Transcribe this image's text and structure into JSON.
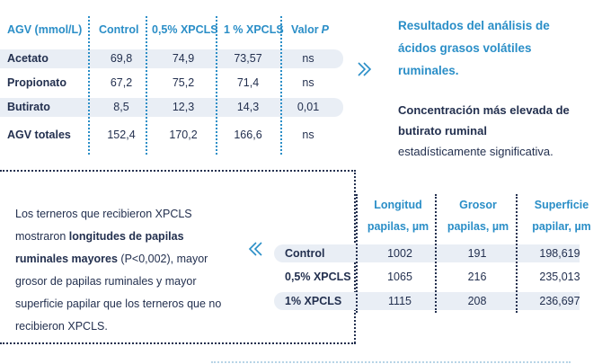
{
  "table1": {
    "headers": [
      "AGV (mmol/L)",
      "Control",
      "0,5% XPCLS",
      "1 % XPCLS",
      "Valor",
      "P"
    ],
    "rows": [
      {
        "label": "Acetato",
        "values": [
          "69,8",
          "74,9",
          "73,57",
          "ns"
        ]
      },
      {
        "label": "Propionato",
        "values": [
          "67,2",
          "75,2",
          "71,4",
          "ns"
        ]
      },
      {
        "label": "Butirato",
        "values": [
          "8,5",
          "12,3",
          "14,3",
          "0,01"
        ]
      },
      {
        "label": "AGV totales",
        "values": [
          "152,4",
          "170,2",
          "166,6",
          "ns"
        ]
      }
    ]
  },
  "caption1": {
    "title": "Resultados del análisis de ácidos grasos volátiles ruminales.",
    "body_bold": "Concentración más elevada de butirato ruminal",
    "body_rest": " estadísticamente significativa."
  },
  "text2": {
    "part1": "Los terneros que recibieron XPCLS mostraron ",
    "bold": "longitudes de papilas ruminales mayores",
    "part2": " (P<0,002), mayor grosor de papilas ruminales y mayor superficie papilar que los terneros que no recibieron XPCLS."
  },
  "table2": {
    "headers": [
      {
        "l1": "Longitud",
        "l2": "papilas, µm"
      },
      {
        "l1": "Grosor",
        "l2": "papilas, µm"
      },
      {
        "l1": "Superficie",
        "l2": "papilar, µm"
      }
    ],
    "rows": [
      {
        "label": "Control",
        "values": [
          "1002",
          "191",
          "198,619"
        ]
      },
      {
        "label": "0,5% XPCLS",
        "values": [
          "1065",
          "216",
          "235,013"
        ]
      },
      {
        "label": "1% XPCLS",
        "values": [
          "1115",
          "208",
          "236,697"
        ]
      }
    ]
  },
  "colors": {
    "accent": "#2a8ec7",
    "text": "#23304f",
    "row_shade": "#e9eef5"
  },
  "icons": [
    "chevron-right-double-icon",
    "chevron-left-double-icon"
  ]
}
